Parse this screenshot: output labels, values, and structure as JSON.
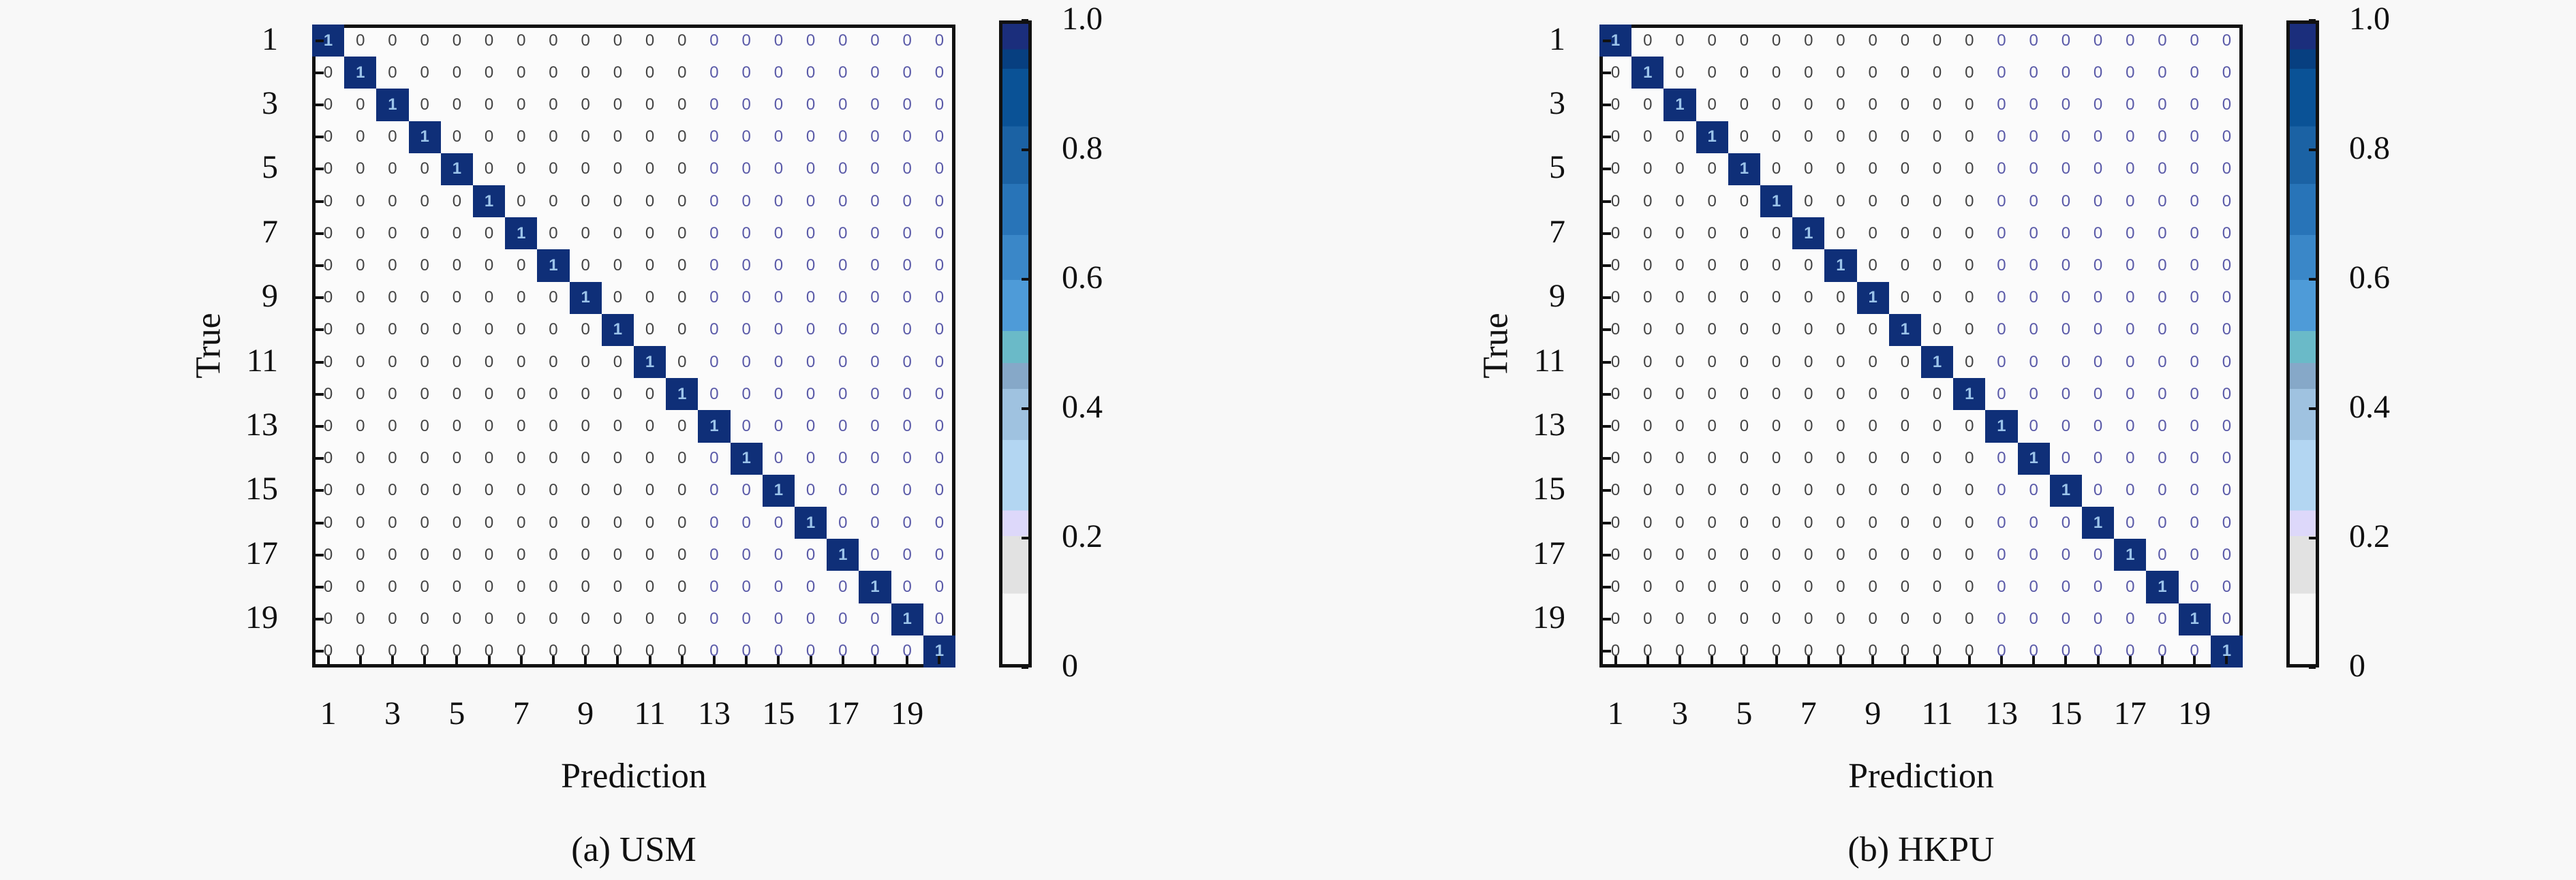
{
  "chart_data": [
    {
      "type": "heatmap",
      "caption": "(a) USM",
      "xlabel": "Prediction",
      "ylabel": "True",
      "xtick_labels": [
        "1",
        "3",
        "5",
        "7",
        "9",
        "11",
        "13",
        "15",
        "17",
        "19"
      ],
      "ytick_labels": [
        "1",
        "3",
        "5",
        "7",
        "9",
        "11",
        "13",
        "15",
        "17",
        "19"
      ],
      "classes": 20,
      "matrix_description": "identity",
      "colorbar": {
        "ticks": [
          "0",
          "0.2",
          "0.4",
          "0.6",
          "0.8",
          "1.0"
        ],
        "range": [
          0,
          1
        ]
      },
      "diagonal_value": 1,
      "off_diagonal_value": 0
    },
    {
      "type": "heatmap",
      "caption": "(b) HKPU",
      "xlabel": "Prediction",
      "ylabel": "True",
      "xtick_labels": [
        "1",
        "3",
        "5",
        "7",
        "9",
        "11",
        "13",
        "15",
        "17",
        "19"
      ],
      "ytick_labels": [
        "1",
        "3",
        "5",
        "7",
        "9",
        "11",
        "13",
        "15",
        "17",
        "19"
      ],
      "classes": 20,
      "matrix_description": "identity",
      "colorbar": {
        "ticks": [
          "0",
          "0.2",
          "0.4",
          "0.6",
          "0.8",
          "1.0"
        ],
        "range": [
          0,
          1
        ]
      },
      "diagonal_value": 1,
      "off_diagonal_value": 0
    }
  ],
  "colors": {
    "diagonal": "#0f2f78",
    "diagonal_text": "#9cc4ea",
    "zero_text": "#444444"
  }
}
